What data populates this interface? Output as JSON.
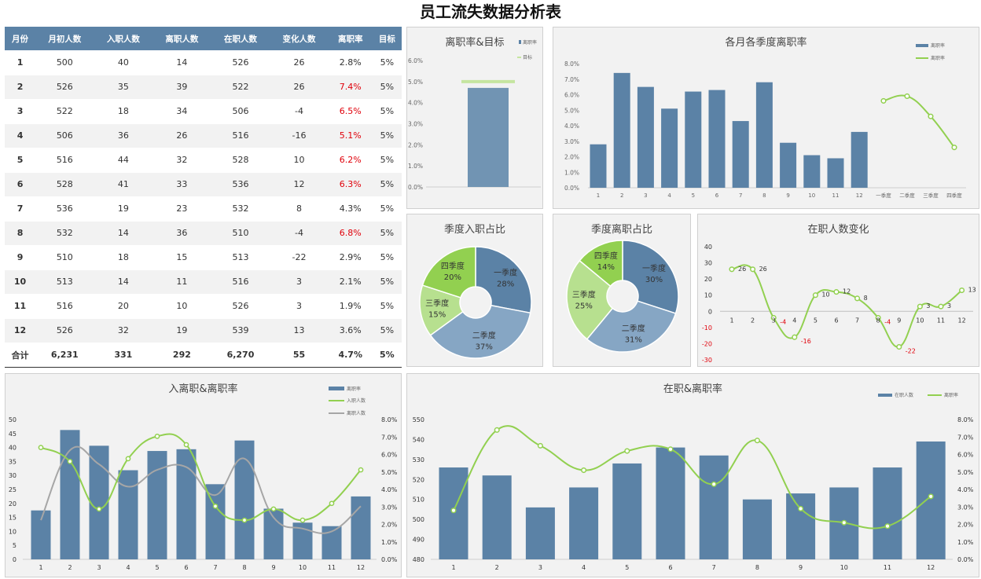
{
  "page": {
    "title": "员工流失数据分析表"
  },
  "table": {
    "headers": [
      "月份",
      "月初人数",
      "入职人数",
      "离职人数",
      "在职人数",
      "变化人数",
      "离职率",
      "目标"
    ],
    "rows": [
      [
        "1",
        "500",
        "40",
        "14",
        "526",
        "26",
        "2.8%",
        "5%"
      ],
      [
        "2",
        "526",
        "35",
        "39",
        "522",
        "26",
        "7.4%",
        "5%"
      ],
      [
        "3",
        "522",
        "18",
        "34",
        "506",
        "-4",
        "6.5%",
        "5%"
      ],
      [
        "4",
        "506",
        "36",
        "26",
        "516",
        "-16",
        "5.1%",
        "5%"
      ],
      [
        "5",
        "516",
        "44",
        "32",
        "528",
        "10",
        "6.2%",
        "5%"
      ],
      [
        "6",
        "528",
        "41",
        "33",
        "536",
        "12",
        "6.3%",
        "5%"
      ],
      [
        "7",
        "536",
        "19",
        "23",
        "532",
        "8",
        "4.3%",
        "5%"
      ],
      [
        "8",
        "532",
        "14",
        "36",
        "510",
        "-4",
        "6.8%",
        "5%"
      ],
      [
        "9",
        "510",
        "18",
        "15",
        "513",
        "-22",
        "2.9%",
        "5%"
      ],
      [
        "10",
        "513",
        "14",
        "11",
        "516",
        "3",
        "2.1%",
        "5%"
      ],
      [
        "11",
        "516",
        "20",
        "10",
        "526",
        "3",
        "1.9%",
        "5%"
      ],
      [
        "12",
        "526",
        "32",
        "19",
        "539",
        "13",
        "3.6%",
        "5%"
      ]
    ],
    "total": [
      "合计",
      "6,231",
      "331",
      "292",
      "6,270",
      "55",
      "4.7%",
      "5%"
    ],
    "highlight_rows": [
      1,
      2,
      3,
      4,
      5,
      7
    ],
    "highlight_color": "#e0000a"
  },
  "colors": {
    "bar": "#5b82a6",
    "green": "#92d050",
    "gray": "#a6a6a6",
    "target": "#c5e5a0"
  },
  "chart_data": [
    {
      "id": "rate_target",
      "type": "bar",
      "title": "离职率&目标",
      "legend": [
        "离职率",
        "目标"
      ],
      "values": [
        0.047
      ],
      "target": 0.05,
      "ylim": [
        0,
        0.06
      ],
      "yticks": [
        "0.0%",
        "1.0%",
        "2.0%",
        "3.0%",
        "4.0%",
        "5.0%",
        "6.0%"
      ]
    },
    {
      "id": "monthly_quarterly",
      "type": "bar",
      "title": "各月各季度离职率",
      "legend": [
        "离职率",
        "离职率"
      ],
      "categories": [
        "1",
        "2",
        "3",
        "4",
        "5",
        "6",
        "7",
        "8",
        "9",
        "10",
        "11",
        "12"
      ],
      "values": [
        0.028,
        0.074,
        0.065,
        0.051,
        0.062,
        0.063,
        0.043,
        0.068,
        0.029,
        0.021,
        0.019,
        0.036
      ],
      "quarter_categories": [
        "一季度",
        "二季度",
        "三季度",
        "四季度"
      ],
      "quarter_values": [
        0.056,
        0.059,
        0.046,
        0.026
      ],
      "ylim": [
        0,
        0.08
      ],
      "yticks": [
        "0.0%",
        "1.0%",
        "2.0%",
        "3.0%",
        "4.0%",
        "5.0%",
        "6.0%",
        "7.0%",
        "8.0%"
      ]
    },
    {
      "id": "hire_share",
      "type": "pie",
      "title": "季度入职占比",
      "categories": [
        "一季度",
        "二季度",
        "三季度",
        "四季度"
      ],
      "values": [
        28,
        37,
        15,
        20
      ],
      "labels": [
        "28%",
        "37%",
        "15%",
        "20%"
      ]
    },
    {
      "id": "leave_share",
      "type": "pie",
      "title": "季度离职占比",
      "categories": [
        "一季度",
        "二季度",
        "三季度",
        "四季度"
      ],
      "values": [
        30,
        31,
        25,
        14
      ],
      "labels": [
        "30%",
        "31%",
        "25%",
        "14%"
      ]
    },
    {
      "id": "headcount_change",
      "type": "line",
      "title": "在职人数变化",
      "categories": [
        "1",
        "2",
        "3",
        "4",
        "5",
        "6",
        "7",
        "8",
        "9",
        "10",
        "11",
        "12"
      ],
      "values": [
        26,
        26,
        -4,
        -16,
        10,
        12,
        8,
        -4,
        -22,
        3,
        3,
        13
      ],
      "ylim": [
        -30,
        40
      ],
      "yticks": [
        "-30",
        "-20",
        "-10",
        "0",
        "10",
        "20",
        "30",
        "40"
      ]
    },
    {
      "id": "hire_leave_rate",
      "type": "bar",
      "title": "入离职&离职率",
      "legend": [
        "离职率",
        "入职人数",
        "离职人数"
      ],
      "categories": [
        "1",
        "2",
        "3",
        "4",
        "5",
        "6",
        "7",
        "8",
        "9",
        "10",
        "11",
        "12"
      ],
      "bar_values": [
        0.028,
        0.074,
        0.065,
        0.051,
        0.062,
        0.063,
        0.043,
        0.068,
        0.029,
        0.021,
        0.019,
        0.036
      ],
      "hires": [
        40,
        35,
        18,
        36,
        44,
        41,
        19,
        14,
        18,
        14,
        20,
        32
      ],
      "leavers": [
        14,
        39,
        34,
        26,
        32,
        33,
        23,
        36,
        15,
        11,
        10,
        19
      ],
      "ylim_left": [
        0,
        50
      ],
      "ylim_right": [
        0,
        0.08
      ],
      "yticks_left": [
        "0",
        "5",
        "10",
        "15",
        "20",
        "25",
        "30",
        "35",
        "40",
        "45",
        "50"
      ],
      "yticks_right": [
        "0.0%",
        "1.0%",
        "2.0%",
        "3.0%",
        "4.0%",
        "5.0%",
        "6.0%",
        "7.0%",
        "8.0%"
      ]
    },
    {
      "id": "headcount_rate",
      "type": "bar",
      "title": "在职&离职率",
      "legend": [
        "在职人数",
        "离职率"
      ],
      "categories": [
        "1",
        "2",
        "3",
        "4",
        "5",
        "6",
        "7",
        "8",
        "9",
        "10",
        "11",
        "12"
      ],
      "bar_values": [
        526,
        522,
        506,
        516,
        528,
        536,
        532,
        510,
        513,
        516,
        526,
        539
      ],
      "rate": [
        0.028,
        0.074,
        0.065,
        0.051,
        0.062,
        0.063,
        0.043,
        0.068,
        0.029,
        0.021,
        0.019,
        0.036
      ],
      "ylim_left": [
        480,
        550
      ],
      "ylim_right": [
        0,
        0.08
      ],
      "yticks_left": [
        "480",
        "490",
        "500",
        "510",
        "520",
        "530",
        "540",
        "550"
      ],
      "yticks_right": [
        "0.0%",
        "1.0%",
        "2.0%",
        "3.0%",
        "4.0%",
        "5.0%",
        "6.0%",
        "7.0%",
        "8.0%"
      ]
    }
  ]
}
